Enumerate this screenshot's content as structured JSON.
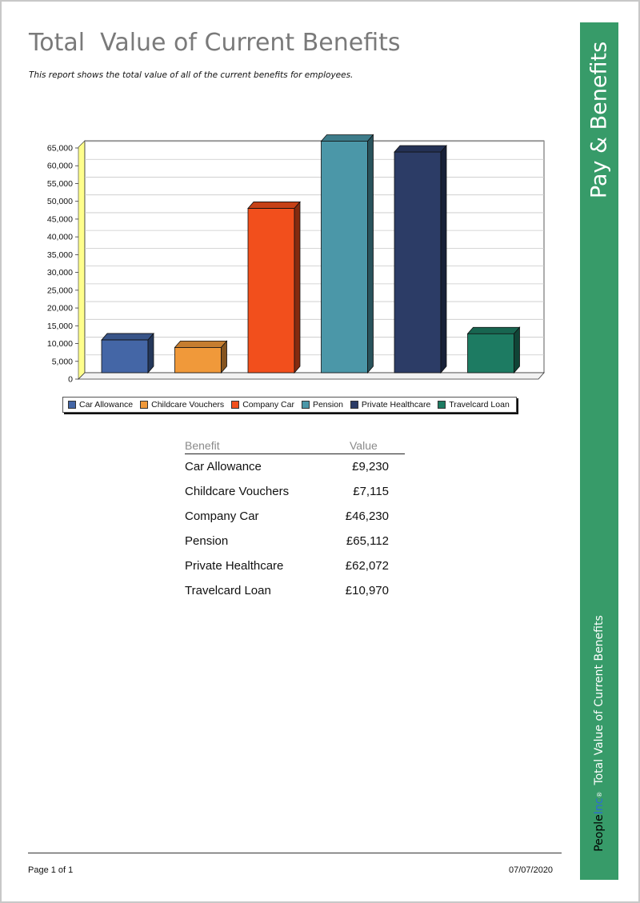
{
  "report": {
    "title": "Total  Value of Current Benefits",
    "subtitle": "This report shows the total value of all of the current benefits for employees."
  },
  "chart_data": {
    "type": "bar",
    "categories": [
      "Car Allowance",
      "Childcare Vouchers",
      "Company Car",
      "Pension",
      "Private Healthcare",
      "Travelcard Loan"
    ],
    "values": [
      9230,
      7115,
      46230,
      65112,
      62072,
      10970
    ],
    "ylim": [
      0,
      65000
    ],
    "yticks": [
      "0",
      "5,000",
      "10,000",
      "15,000",
      "20,000",
      "25,000",
      "30,000",
      "35,000",
      "40,000",
      "45,000",
      "50,000",
      "55,000",
      "60,000",
      "65,000"
    ],
    "colors": [
      "#4466a6",
      "#f0993a",
      "#f24f1c",
      "#4b97a8",
      "#2c3c66",
      "#1d7b62"
    ],
    "legend_position": "bottom",
    "grid": true,
    "style": "3d"
  },
  "table": {
    "headers": {
      "benefit": "Benefit",
      "value": "Value"
    },
    "rows": [
      {
        "benefit": "Car Allowance",
        "value": "£9,230"
      },
      {
        "benefit": "Childcare Vouchers",
        "value": "£7,115"
      },
      {
        "benefit": "Company Car",
        "value": "£46,230"
      },
      {
        "benefit": "Pension",
        "value": "£65,112"
      },
      {
        "benefit": "Private Healthcare",
        "value": "£62,072"
      },
      {
        "benefit": "Travelcard Loan",
        "value": "£10,970"
      }
    ]
  },
  "footer": {
    "page": "Page 1 of 1",
    "date": "07/07/2020"
  },
  "sidebar": {
    "title": "Pay & Benefits",
    "brand_people": "People",
    "brand_inc": "Inc",
    "brand_reg": "®",
    "report_name": "Total  Value of Current Benefits",
    "color": "#379b69"
  }
}
